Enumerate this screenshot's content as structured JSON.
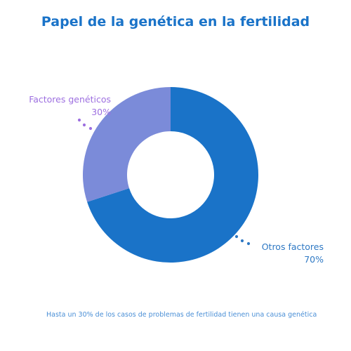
{
  "chart_data": {
    "type": "pie",
    "title": "Papel de la genética en la fertilidad",
    "categories": [
      "Otros factores",
      "Factores genéticos"
    ],
    "values": [
      70,
      30
    ],
    "value_labels": [
      "70%",
      "30%"
    ],
    "colors": [
      "#1a73c8",
      "#7b8bd9"
    ],
    "label_colors": [
      "#2f79c4",
      "#9d6fe0"
    ],
    "donut": true,
    "footnote": "Hasta un 30% de los casos de problemas de fertilidad tienen una causa genética"
  }
}
